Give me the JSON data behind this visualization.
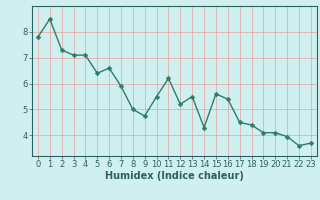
{
  "x": [
    0,
    1,
    2,
    3,
    4,
    5,
    6,
    7,
    8,
    9,
    10,
    11,
    12,
    13,
    14,
    15,
    16,
    17,
    18,
    19,
    20,
    21,
    22,
    23
  ],
  "y": [
    7.8,
    8.5,
    7.3,
    7.1,
    7.1,
    6.4,
    6.6,
    5.9,
    5.0,
    4.75,
    5.5,
    6.2,
    5.2,
    5.5,
    4.3,
    5.6,
    5.4,
    4.5,
    4.4,
    4.1,
    4.1,
    3.95,
    3.6,
    3.7
  ],
  "line_color": "#2d7d6e",
  "marker": "D",
  "marker_size": 2.5,
  "line_width": 1.0,
  "bg_color": "#cff0ee",
  "grid_color": "#e8a0a0",
  "xlabel": "Humidex (Indice chaleur)",
  "xlabel_fontsize": 7,
  "xlim": [
    -0.5,
    23.5
  ],
  "ylim": [
    3.2,
    9.0
  ],
  "yticks": [
    4,
    5,
    6,
    7,
    8
  ],
  "xticks": [
    0,
    1,
    2,
    3,
    4,
    5,
    6,
    7,
    8,
    9,
    10,
    11,
    12,
    13,
    14,
    15,
    16,
    17,
    18,
    19,
    20,
    21,
    22,
    23
  ],
  "tick_fontsize": 6,
  "axis_color": "#2d6060"
}
